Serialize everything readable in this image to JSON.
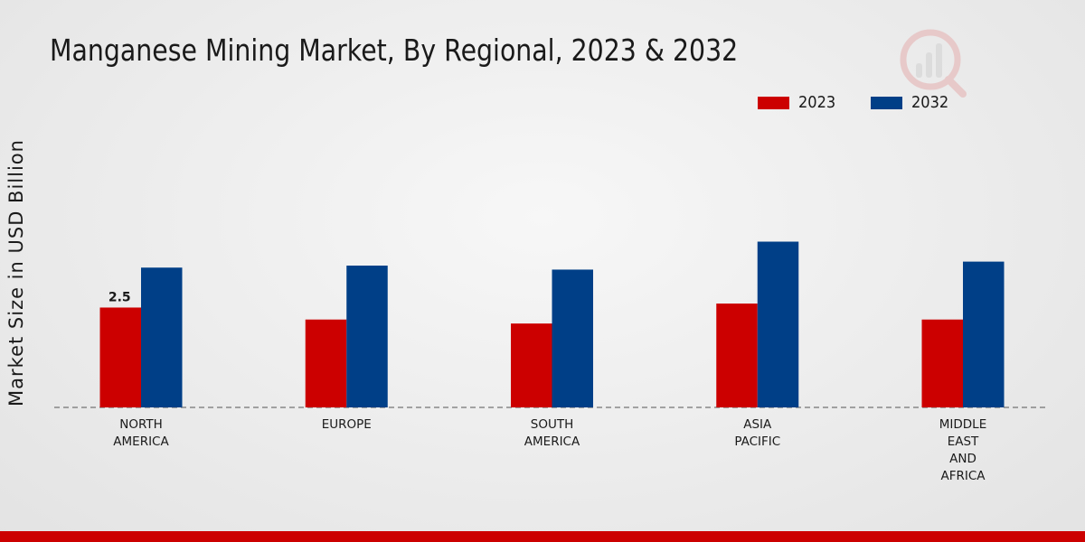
{
  "chart_data": {
    "type": "bar",
    "title": "Manganese Mining Market, By Regional, 2023 & 2032",
    "xlabel": "",
    "ylabel": "Market Size in USD Billion",
    "categories": [
      [
        "NORTH",
        "AMERICA"
      ],
      [
        "EUROPE"
      ],
      [
        "SOUTH",
        "AMERICA"
      ],
      [
        "ASIA",
        "PACIFIC"
      ],
      [
        "MIDDLE",
        "EAST",
        "AND",
        "AFRICA"
      ]
    ],
    "series": [
      {
        "name": "2023",
        "color": "#cc0000",
        "values": [
          2.5,
          2.2,
          2.1,
          2.6,
          2.2
        ]
      },
      {
        "name": "2032",
        "color": "#003f87",
        "values": [
          3.5,
          3.55,
          3.45,
          4.15,
          3.65
        ]
      }
    ],
    "data_labels": [
      {
        "series": 0,
        "index": 0,
        "text": "2.5"
      }
    ],
    "ylim": [
      0,
      10.2
    ],
    "grid": false,
    "legend_position": "top-right"
  }
}
